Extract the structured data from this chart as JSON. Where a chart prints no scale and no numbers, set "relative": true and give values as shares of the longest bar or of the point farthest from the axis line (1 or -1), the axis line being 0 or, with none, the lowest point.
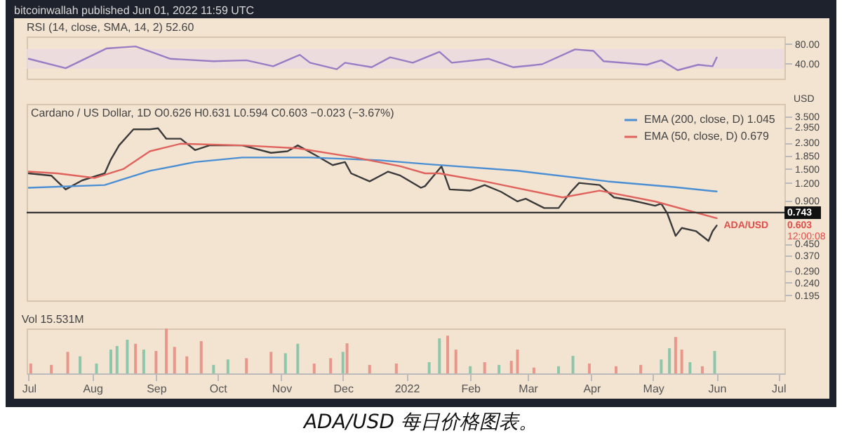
{
  "chart_data": [
    {
      "type": "line",
      "title": "RSI (14, close, SMA, 14, 2) 52.60",
      "annotations": [
        "bitcoinwallah published Jun 01, 2022 11:59 UTC"
      ],
      "xlim": [
        "2021-06-30",
        "2022-07-04"
      ],
      "ylim": [
        10,
        95
      ],
      "yticks": [
        {
          "value": 80,
          "label": "80.00"
        },
        {
          "value": 40,
          "label": "40.00"
        }
      ],
      "tick_labels": "y",
      "bands": [
        {
          "axis": "y",
          "from": 30,
          "to": 70,
          "color": "#eadae0"
        }
      ],
      "series": [
        {
          "color": "#9a7cc4",
          "x": [
            "2021-07-01",
            "2021-07-19",
            "2021-08-08",
            "2021-08-22",
            "2021-08-31",
            "2021-09-08",
            "2021-09-29",
            "2021-10-15",
            "2021-10-28",
            "2021-11-10",
            "2021-11-15",
            "2021-11-28",
            "2021-12-02",
            "2021-12-15",
            "2021-12-24",
            "2022-01-04",
            "2022-01-17",
            "2022-01-23",
            "2022-02-10",
            "2022-02-22",
            "2022-03-08",
            "2022-03-24",
            "2022-04-02",
            "2022-04-07",
            "2022-04-28",
            "2022-05-05",
            "2022-05-13",
            "2022-05-23",
            "2022-05-30",
            "2022-06-01"
          ],
          "values": [
            50,
            31,
            71,
            75,
            62,
            50,
            45,
            47,
            35,
            58,
            42,
            29,
            42,
            33,
            53,
            42,
            64,
            42,
            50,
            33,
            39,
            69,
            66,
            45,
            38,
            47,
            27,
            38,
            35,
            52.6
          ]
        }
      ]
    },
    {
      "type": "line",
      "title": "Cardano / US Dollar, 1D  O0.626 H0.631 L0.594 C0.603 −0.023 (−3.67%)",
      "ylabel": "USD",
      "log": true,
      "legend": "top right",
      "tick_labels": "y",
      "xlim": [
        "2021-06-30",
        "2022-07-04"
      ],
      "ylim": [
        0.18,
        4.3
      ],
      "yticks": [
        {
          "value": 3.5,
          "label": "3.500"
        },
        {
          "value": 2.95,
          "label": "2.950"
        },
        {
          "value": 2.3,
          "label": "2.300"
        },
        {
          "value": 1.85,
          "label": "1.850"
        },
        {
          "value": 1.5,
          "label": "1.500"
        },
        {
          "value": 1.2,
          "label": "1.200"
        },
        {
          "value": 0.9,
          "label": "0.900"
        },
        {
          "value": 0.45,
          "label": "0.450"
        },
        {
          "value": 0.37,
          "label": "0.370"
        },
        {
          "value": 0.29,
          "label": "0.290"
        },
        {
          "value": 0.24,
          "label": "0.240"
        },
        {
          "value": 0.195,
          "label": "0.195"
        }
      ],
      "ref_lines": [
        {
          "axis": "y",
          "value": 0.743,
          "label": "0.743",
          "color": "#333333"
        }
      ],
      "annotations": [
        {
          "text": "ADA/USD",
          "x": "2022-06-01",
          "y": 0.603
        },
        "0.603",
        "12:00:08"
      ],
      "series": [
        {
          "color": "#3a3a3a",
          "x": [
            "2021-07-01",
            "2021-07-12",
            "2021-07-19",
            "2021-07-27",
            "2021-08-07",
            "2021-08-10",
            "2021-08-14",
            "2021-08-21",
            "2021-08-29",
            "2021-09-02",
            "2021-09-06",
            "2021-09-13",
            "2021-09-20",
            "2021-09-27",
            "2021-10-13",
            "2021-10-27",
            "2021-11-04",
            "2021-11-09",
            "2021-11-17",
            "2021-11-26",
            "2021-12-02",
            "2021-12-05",
            "2021-12-14",
            "2021-12-23",
            "2021-12-29",
            "2022-01-08",
            "2022-01-10",
            "2022-01-18",
            "2022-01-22",
            "2022-02-01",
            "2022-02-08",
            "2022-02-16",
            "2022-02-24",
            "2022-02-28",
            "2022-03-09",
            "2022-03-16",
            "2022-03-22",
            "2022-03-26",
            "2022-04-05",
            "2022-04-12",
            "2022-04-20",
            "2022-05-02",
            "2022-05-05",
            "2022-05-08",
            "2022-05-12",
            "2022-05-15",
            "2022-05-22",
            "2022-05-28",
            "2022-05-30",
            "2022-06-01"
          ],
          "values": [
            1.4,
            1.35,
            1.08,
            1.25,
            1.4,
            1.75,
            2.2,
            2.85,
            2.85,
            2.9,
            2.45,
            2.45,
            2.04,
            2.2,
            2.2,
            1.95,
            2.0,
            2.2,
            1.9,
            1.6,
            1.68,
            1.4,
            1.23,
            1.44,
            1.35,
            1.11,
            1.14,
            1.57,
            1.08,
            1.06,
            1.16,
            1.04,
            0.89,
            0.93,
            0.8,
            0.8,
            1.04,
            1.2,
            1.16,
            0.95,
            0.91,
            0.83,
            0.86,
            0.73,
            0.51,
            0.58,
            0.55,
            0.47,
            0.55,
            0.603
          ]
        },
        {
          "name": "EMA (200, close, D) 1.045",
          "color": "#4a8fd4",
          "x": [
            "2021-07-01",
            "2021-08-07",
            "2021-08-29",
            "2021-09-20",
            "2021-10-13",
            "2021-11-15",
            "2021-12-19",
            "2022-01-10",
            "2022-02-24",
            "2022-04-09",
            "2022-05-12",
            "2022-06-01"
          ],
          "values": [
            1.11,
            1.16,
            1.46,
            1.68,
            1.81,
            1.81,
            1.73,
            1.63,
            1.46,
            1.23,
            1.12,
            1.045
          ]
        },
        {
          "name": "EMA (50, close, D) 0.679",
          "color": "#e0625c",
          "x": [
            "2021-07-01",
            "2021-07-15",
            "2021-08-02",
            "2021-08-16",
            "2021-08-29",
            "2021-09-13",
            "2021-10-13",
            "2021-11-09",
            "2021-12-07",
            "2021-12-29",
            "2022-01-10",
            "2022-01-17",
            "2022-02-08",
            "2022-03-18",
            "2022-04-05",
            "2022-05-02",
            "2022-06-01"
          ],
          "values": [
            1.44,
            1.4,
            1.3,
            1.5,
            2.0,
            2.26,
            2.2,
            2.1,
            1.81,
            1.57,
            1.4,
            1.4,
            1.23,
            0.95,
            1.06,
            0.89,
            0.679
          ]
        }
      ]
    },
    {
      "type": "bar",
      "title": "Vol 15.531M",
      "relative": true,
      "annotations": [
        "ADA/USD 每日价格图表。"
      ],
      "xlim": [
        "2021-06-30",
        "2022-07-04"
      ],
      "xticks": [
        {
          "value": "2021-07-01",
          "label": "Jul"
        },
        {
          "value": "2021-08-01",
          "label": "Aug"
        },
        {
          "value": "2021-09-01",
          "label": "Sep"
        },
        {
          "value": "2021-10-01",
          "label": "Oct"
        },
        {
          "value": "2021-11-01",
          "label": "Nov"
        },
        {
          "value": "2021-12-01",
          "label": "Dec"
        },
        {
          "value": "2022-01-01",
          "label": "2022"
        },
        {
          "value": "2022-02-01",
          "label": "Feb"
        },
        {
          "value": "2022-03-01",
          "label": "Mar"
        },
        {
          "value": "2022-04-01",
          "label": "Apr"
        },
        {
          "value": "2022-05-01",
          "label": "May"
        },
        {
          "value": "2022-06-01",
          "label": "Jun"
        },
        {
          "value": "2022-07-01",
          "label": "Jul"
        }
      ],
      "x": [
        "2021-07-02",
        "2021-07-12",
        "2021-07-20",
        "2021-07-26",
        "2021-08-03",
        "2021-08-10",
        "2021-08-13",
        "2021-08-18",
        "2021-08-22",
        "2021-08-26",
        "2021-09-01",
        "2021-09-06",
        "2021-09-10",
        "2021-09-16",
        "2021-09-23",
        "2021-09-29",
        "2021-10-06",
        "2021-10-15",
        "2021-10-27",
        "2021-11-03",
        "2021-11-09",
        "2021-11-17",
        "2021-11-25",
        "2021-12-01",
        "2021-12-03",
        "2021-12-14",
        "2021-12-27",
        "2022-01-12",
        "2022-01-17",
        "2022-01-21",
        "2022-01-25",
        "2022-02-01",
        "2022-02-08",
        "2022-02-15",
        "2022-02-21",
        "2022-02-24",
        "2022-03-04",
        "2022-03-16",
        "2022-03-23",
        "2022-03-31",
        "2022-04-13",
        "2022-04-25",
        "2022-05-05",
        "2022-05-09",
        "2022-05-12",
        "2022-05-15",
        "2022-05-19",
        "2022-05-25",
        "2022-05-31"
      ],
      "values": [
        0.22,
        0.19,
        0.48,
        0.38,
        0.22,
        0.53,
        0.61,
        0.75,
        0.66,
        0.53,
        0.5,
        1,
        0.59,
        0.38,
        0.72,
        0.19,
        0.31,
        0.34,
        0.48,
        0.45,
        0.66,
        0.22,
        0.34,
        0.48,
        0.67,
        0.19,
        0.22,
        0.25,
        0.78,
        0.84,
        0.53,
        0.16,
        0.25,
        0.19,
        0.28,
        0.53,
        0.13,
        0.16,
        0.39,
        0.22,
        0.16,
        0.19,
        0.31,
        0.56,
        0.81,
        0.53,
        0.25,
        0.16,
        0.5
      ],
      "colors": [
        "#e8978a",
        "#e8978a",
        "#e8978a",
        "#8cc7ab",
        "#8cc7ab",
        "#8cc7ab",
        "#8cc7ab",
        "#8cc7ab",
        "#e8978a",
        "#8cc7ab",
        "#e8978a",
        "#e8978a",
        "#e8978a",
        "#e8978a",
        "#e8978a",
        "#8cc7ab",
        "#8cc7ab",
        "#e8978a",
        "#e8978a",
        "#8cc7ab",
        "#8cc7ab",
        "#e8978a",
        "#e8978a",
        "#8cc7ab",
        "#e8978a",
        "#e8978a",
        "#e8978a",
        "#8cc7ab",
        "#8cc7ab",
        "#e8978a",
        "#e8978a",
        "#8cc7ab",
        "#e8978a",
        "#8cc7ab",
        "#e8978a",
        "#e8978a",
        "#e8978a",
        "#8cc7ab",
        "#8cc7ab",
        "#e8978a",
        "#e8978a",
        "#e8978a",
        "#8cc7ab",
        "#8cc7ab",
        "#e8978a",
        "#e8978a",
        "#8cc7ab",
        "#e8978a",
        "#8cc7ab"
      ]
    }
  ]
}
